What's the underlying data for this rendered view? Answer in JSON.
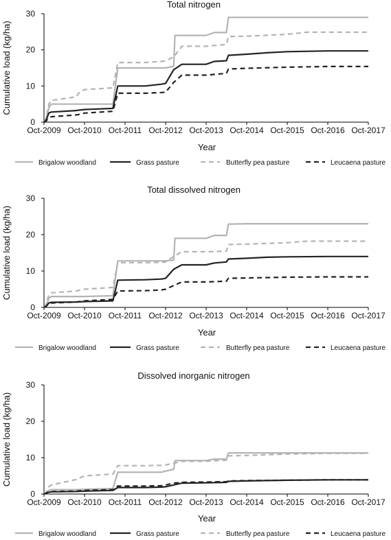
{
  "figure": {
    "series_legend": [
      {
        "name": "Brigalow woodland",
        "color": "#b3b3b3",
        "style": "solid"
      },
      {
        "name": "Grass pasture",
        "color": "#222222",
        "style": "solid"
      },
      {
        "name": "Butterfly pea pasture",
        "color": "#b3b3b3",
        "style": "dashed"
      },
      {
        "name": "Leucaena pasture",
        "color": "#222222",
        "style": "dashed"
      }
    ]
  },
  "chart_data": [
    {
      "type": "line",
      "title": "Total nitrogen",
      "xlabel": "Year",
      "ylabel": "Cumulative load (kg/ha)",
      "x_ticks": [
        "Oct-2009",
        "Oct-2010",
        "Oct-2011",
        "Oct-2012",
        "Oct-2013",
        "Oct-2014",
        "Oct-2015",
        "Oct-2016",
        "Oct-2017"
      ],
      "xlim": [
        0,
        8
      ],
      "ylim": [
        0,
        30
      ],
      "y_ticks": [
        0,
        10,
        20,
        30
      ],
      "legend": "bottom",
      "series": [
        {
          "name": "Brigalow woodland",
          "x": [
            0,
            0.05,
            0.12,
            0.18,
            0.8,
            0.85,
            1.0,
            1.7,
            1.82,
            2.5,
            2.9,
            3.0,
            3.2,
            3.23,
            3.4,
            4.0,
            4.2,
            4.23,
            4.5,
            4.55,
            5.0,
            6.0,
            7.0,
            8.0
          ],
          "y": [
            0,
            0.5,
            4,
            5,
            5,
            5,
            5,
            5,
            15,
            15,
            15,
            15,
            15.5,
            24,
            24,
            24,
            24.8,
            24.8,
            24.8,
            29,
            29,
            29,
            29,
            29
          ]
        },
        {
          "name": "Grass pasture",
          "x": [
            0,
            0.05,
            0.12,
            0.18,
            0.8,
            0.85,
            1.0,
            1.7,
            1.82,
            2.5,
            2.9,
            3.0,
            3.2,
            3.4,
            4.0,
            4.2,
            4.5,
            4.55,
            5.0,
            5.5,
            6.0,
            7.0,
            8.0
          ],
          "y": [
            0,
            0.5,
            2.5,
            2.8,
            3.2,
            3.3,
            3.5,
            3.8,
            10,
            10,
            10.5,
            10.7,
            14.5,
            16,
            16,
            16.8,
            17,
            18.5,
            18.8,
            19.2,
            19.5,
            19.7,
            19.7
          ]
        },
        {
          "name": "Butterfly pea pasture",
          "x": [
            0,
            0.05,
            0.12,
            0.18,
            0.8,
            0.85,
            1.0,
            1.7,
            1.82,
            2.5,
            2.9,
            3.0,
            3.2,
            3.4,
            4.0,
            4.5,
            4.55,
            5.0,
            6.0,
            6.5,
            7.0,
            8.0
          ],
          "y": [
            0,
            1,
            5,
            6,
            7,
            8,
            9,
            9.5,
            16.5,
            16.5,
            16.8,
            17,
            18,
            21,
            21,
            21.5,
            23.7,
            23.8,
            24.3,
            24.9,
            24.9,
            24.9
          ]
        },
        {
          "name": "Leucaena pasture",
          "x": [
            0,
            0.05,
            0.12,
            0.18,
            0.8,
            0.85,
            1.0,
            1.7,
            1.82,
            2.5,
            2.9,
            3.0,
            3.2,
            3.4,
            4.0,
            4.5,
            4.55,
            5.0,
            6.0,
            7.0,
            8.0
          ],
          "y": [
            0,
            0.3,
            1.2,
            1.5,
            2,
            2.1,
            2.5,
            3,
            8,
            8,
            8.2,
            8.3,
            11,
            13,
            13,
            13.5,
            14.7,
            14.9,
            15.2,
            15.4,
            15.4
          ]
        }
      ]
    },
    {
      "type": "line",
      "title": "Total dissolved nitrogen",
      "xlabel": "Year",
      "ylabel": "Cumulative load (kg/ha)",
      "x_ticks": [
        "Oct-2009",
        "Oct-2010",
        "Oct-2011",
        "Oct-2012",
        "Oct-2013",
        "Oct-2014",
        "Oct-2015",
        "Oct-2016",
        "Oct-2017"
      ],
      "xlim": [
        0,
        8
      ],
      "ylim": [
        0,
        30
      ],
      "y_ticks": [
        0,
        10,
        20,
        30
      ],
      "legend": "bottom",
      "series": [
        {
          "name": "Brigalow woodland",
          "x": [
            0,
            0.05,
            0.12,
            0.18,
            0.8,
            1.0,
            1.7,
            1.82,
            2.5,
            2.9,
            3.0,
            3.2,
            3.23,
            3.4,
            4.0,
            4.2,
            4.23,
            4.5,
            4.55,
            5.0,
            6.0,
            7.0,
            8.0
          ],
          "y": [
            0,
            0.5,
            2.5,
            3,
            3,
            3,
            3.2,
            12.8,
            12.8,
            12.8,
            12.8,
            13,
            19,
            19,
            19,
            19.8,
            19.8,
            19.8,
            22.9,
            23,
            23,
            23,
            23
          ]
        },
        {
          "name": "Grass pasture",
          "x": [
            0,
            0.05,
            0.12,
            0.18,
            0.8,
            1.0,
            1.7,
            1.82,
            2.5,
            2.9,
            3.0,
            3.2,
            3.4,
            4.0,
            4.2,
            4.5,
            4.55,
            5.0,
            5.5,
            6.0,
            7.0,
            8.0
          ],
          "y": [
            0,
            0.3,
            1.2,
            1.4,
            1.5,
            1.6,
            1.8,
            7.5,
            7.6,
            7.8,
            8,
            10.5,
            11.7,
            11.7,
            12.2,
            12.5,
            13.3,
            13.5,
            13.8,
            13.9,
            14,
            14
          ]
        },
        {
          "name": "Butterfly pea pasture",
          "x": [
            0,
            0.05,
            0.12,
            0.18,
            0.8,
            1.0,
            1.7,
            1.82,
            2.5,
            2.9,
            3.0,
            3.2,
            3.4,
            4.0,
            4.5,
            4.55,
            5.0,
            6.0,
            6.5,
            7.0,
            8.0
          ],
          "y": [
            0,
            0.8,
            3.5,
            4,
            4.5,
            5,
            5.5,
            12.3,
            12.3,
            12.4,
            12.5,
            14,
            15.3,
            15.3,
            15.5,
            17.3,
            17.4,
            17.8,
            18.2,
            18.2,
            18.2
          ]
        },
        {
          "name": "Leucaena pasture",
          "x": [
            0,
            0.05,
            0.12,
            0.18,
            0.8,
            1.0,
            1.7,
            1.82,
            2.5,
            2.9,
            3.0,
            3.2,
            3.4,
            4.0,
            4.5,
            4.55,
            5.0,
            6.0,
            7.0,
            8.0
          ],
          "y": [
            0,
            0.3,
            1,
            1.2,
            1.5,
            1.8,
            2.2,
            4.5,
            4.6,
            4.8,
            5,
            6,
            7,
            7,
            7.2,
            8,
            8.1,
            8.3,
            8.4,
            8.4
          ]
        }
      ]
    },
    {
      "type": "line",
      "title": "Dissolved inorganic nitrogen",
      "xlabel": "Year",
      "ylabel": "Cumulative load (kg/ha)",
      "x_ticks": [
        "Oct-2009",
        "Oct-2010",
        "Oct-2011",
        "Oct-2012",
        "Oct-2013",
        "Oct-2014",
        "Oct-2015",
        "Oct-2016",
        "Oct-2017"
      ],
      "xlim": [
        0,
        8
      ],
      "ylim": [
        0,
        30
      ],
      "y_ticks": [
        0,
        10,
        20,
        30
      ],
      "legend": "bottom",
      "series": [
        {
          "name": "Brigalow woodland",
          "x": [
            0,
            0.05,
            0.12,
            0.18,
            0.8,
            1.0,
            1.7,
            1.82,
            2.5,
            2.9,
            3.0,
            3.2,
            3.23,
            3.4,
            4.0,
            4.2,
            4.23,
            4.5,
            4.55,
            5.0,
            6.0,
            7.0,
            8.0
          ],
          "y": [
            0,
            0.3,
            1,
            1.2,
            1.2,
            1.3,
            1.5,
            6,
            6,
            6,
            6.3,
            6.8,
            9.2,
            9.2,
            9.2,
            9.6,
            9.6,
            9.6,
            11.3,
            11.3,
            11.3,
            11.3,
            11.3
          ]
        },
        {
          "name": "Grass pasture",
          "x": [
            0,
            0.05,
            0.12,
            0.18,
            0.8,
            1.0,
            1.7,
            1.82,
            2.5,
            2.9,
            3.0,
            3.2,
            3.4,
            4.0,
            4.5,
            4.55,
            5.0,
            6.0,
            7.0,
            8.0
          ],
          "y": [
            0,
            0.2,
            0.5,
            0.6,
            0.7,
            0.8,
            1,
            1.8,
            1.8,
            1.9,
            2,
            2.5,
            3,
            3.1,
            3.2,
            3.5,
            3.6,
            3.8,
            3.9,
            3.9
          ]
        },
        {
          "name": "Butterfly pea pasture",
          "x": [
            0,
            0.05,
            0.12,
            0.18,
            0.8,
            1.0,
            1.7,
            1.82,
            2.5,
            2.9,
            3.0,
            3.2,
            3.4,
            4.0,
            4.5,
            4.55,
            5.0,
            6.0,
            6.5,
            7.0,
            8.0
          ],
          "y": [
            0,
            0.5,
            2,
            2.5,
            4,
            5,
            5.5,
            7.8,
            7.8,
            7.9,
            8,
            8.5,
            9,
            9,
            9.3,
            10.5,
            10.6,
            11,
            11.1,
            11.2,
            11.2
          ]
        },
        {
          "name": "Leucaena pasture",
          "x": [
            0,
            0.05,
            0.12,
            0.18,
            0.8,
            1.0,
            1.7,
            1.82,
            2.5,
            2.9,
            3.0,
            3.2,
            3.4,
            4.0,
            4.5,
            4.55,
            5.0,
            6.0,
            7.0,
            8.0
          ],
          "y": [
            0,
            0.2,
            0.6,
            0.7,
            0.8,
            1,
            1.2,
            2.2,
            2.2,
            2.3,
            2.5,
            3,
            3.2,
            3.3,
            3.4,
            3.6,
            3.7,
            3.8,
            3.9,
            3.9
          ]
        }
      ]
    }
  ]
}
